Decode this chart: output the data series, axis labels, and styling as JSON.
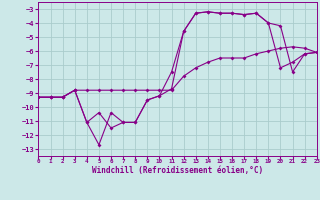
{
  "xlabel": "Windchill (Refroidissement éolien,°C)",
  "bg_color": "#cce8e8",
  "grid_color": "#aacccc",
  "line_color": "#880088",
  "line1_x": [
    0,
    1,
    2,
    3,
    4,
    5,
    6,
    7,
    8,
    9,
    10,
    11,
    12,
    13,
    14,
    15,
    16,
    17,
    18,
    19,
    20,
    21,
    22,
    23
  ],
  "line1_y": [
    -9.3,
    -9.3,
    -9.3,
    -8.8,
    -8.8,
    -8.8,
    -8.8,
    -8.8,
    -8.8,
    -8.8,
    -8.8,
    -8.8,
    -7.8,
    -7.2,
    -6.8,
    -6.5,
    -6.5,
    -6.5,
    -6.2,
    -6.0,
    -5.8,
    -5.7,
    -5.8,
    -6.1
  ],
  "line2_x": [
    0,
    1,
    2,
    3,
    4,
    5,
    6,
    7,
    8,
    9,
    10,
    11,
    12,
    13,
    14,
    15,
    16,
    17,
    18,
    19,
    20,
    21,
    22,
    23
  ],
  "line2_y": [
    -9.3,
    -9.3,
    -9.3,
    -8.8,
    -11.1,
    -10.4,
    -11.5,
    -11.1,
    -11.1,
    -9.5,
    -9.2,
    -8.7,
    -4.6,
    -3.3,
    -3.2,
    -3.3,
    -3.3,
    -3.4,
    -3.3,
    -4.0,
    -7.2,
    -6.8,
    -6.2,
    -6.1
  ],
  "line3_x": [
    0,
    1,
    2,
    3,
    4,
    5,
    6,
    7,
    8,
    9,
    10,
    11,
    12,
    13,
    14,
    15,
    16,
    17,
    18,
    19,
    20,
    21,
    22,
    23
  ],
  "line3_y": [
    -9.3,
    -9.3,
    -9.3,
    -8.8,
    -11.1,
    -12.7,
    -10.4,
    -11.1,
    -11.1,
    -9.5,
    -9.2,
    -7.5,
    -4.6,
    -3.3,
    -3.2,
    -3.3,
    -3.3,
    -3.4,
    -3.3,
    -4.0,
    -4.2,
    -7.5,
    -6.2,
    -6.1
  ],
  "xlim": [
    0,
    23
  ],
  "ylim": [
    -13.5,
    -2.5
  ],
  "yticks": [
    -3,
    -4,
    -5,
    -6,
    -7,
    -8,
    -9,
    -10,
    -11,
    -12,
    -13
  ],
  "xticks": [
    0,
    1,
    2,
    3,
    4,
    5,
    6,
    7,
    8,
    9,
    10,
    11,
    12,
    13,
    14,
    15,
    16,
    17,
    18,
    19,
    20,
    21,
    22,
    23
  ]
}
